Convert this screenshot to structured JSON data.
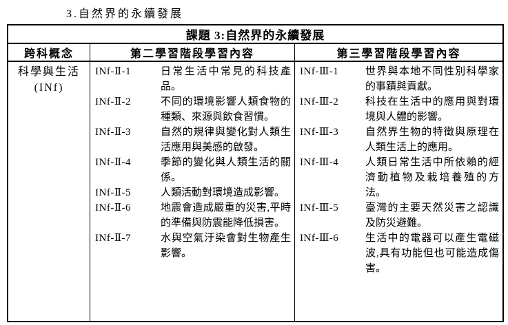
{
  "page_heading": "3.自然界的永續發展",
  "table": {
    "title": "課題 3:自然界的永續發展",
    "columns": [
      "跨科概念",
      "第二學習階段學習內容",
      "第三學習階段學習內容"
    ],
    "concept": {
      "name": "科學與生活",
      "code": "(INf)"
    },
    "stage2_items": [
      {
        "code": "INf-Ⅱ-1",
        "text": "日常生活中常見的科技產品。"
      },
      {
        "code": "INf-Ⅱ-2",
        "text": "不同的環境影響人類食物的種類、來源與飲食習慣。"
      },
      {
        "code": "INf-Ⅱ-3",
        "text": "自然的規律與變化對人類生活應用與美感的啟發。"
      },
      {
        "code": "INf-Ⅱ-4",
        "text": "季節的變化與人類生活的關係。"
      },
      {
        "code": "INf-Ⅱ-5",
        "text": "人類活動對環境造成影響。"
      },
      {
        "code": "INf-Ⅱ-6",
        "text": "地震會造成嚴重的災害,平時的準備與防震能降低損害。"
      },
      {
        "code": "INf-Ⅱ-7",
        "text": "水與空氣汙染會對生物產生影響。"
      }
    ],
    "stage3_items": [
      {
        "code": "INf-Ⅲ-1",
        "text": "世界與本地不同性別科學家的事蹟與貢獻。"
      },
      {
        "code": "INf-Ⅲ-2",
        "text": "科技在生活中的應用與對環境與人體的影響。"
      },
      {
        "code": "INf-Ⅲ-3",
        "text": "自然界生物的特徵與原理在人類生活上的應用。"
      },
      {
        "code": "INf-Ⅲ-4",
        "text": "人類日常生活中所依賴的經濟動植物及栽培養殖的方法。"
      },
      {
        "code": "INf-Ⅲ-5",
        "text": "臺灣的主要天然災害之認識及防災避難。"
      },
      {
        "code": "INf-Ⅲ-6",
        "text": "生活中的電器可以產生電磁波,具有功能但也可能造成傷害。"
      }
    ]
  }
}
